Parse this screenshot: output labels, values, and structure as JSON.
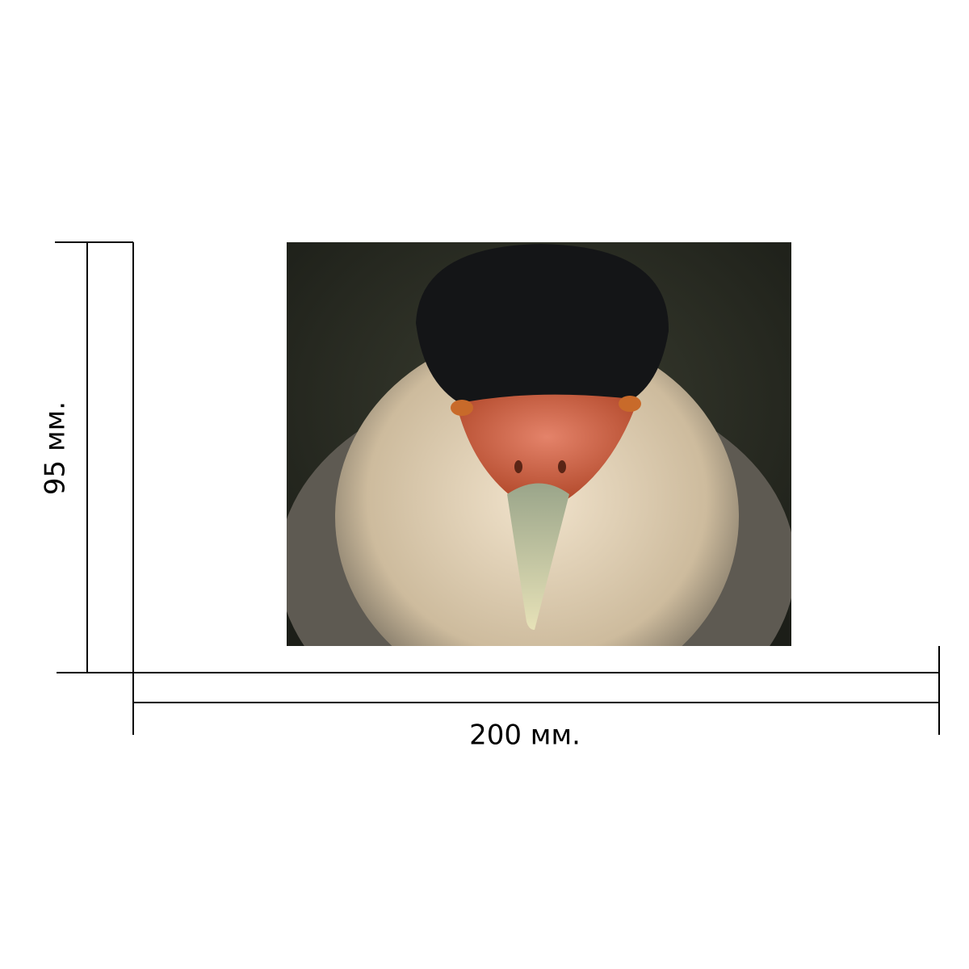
{
  "dimensions": {
    "width_label": "200 мм.",
    "height_label": "95 мм."
  }
}
